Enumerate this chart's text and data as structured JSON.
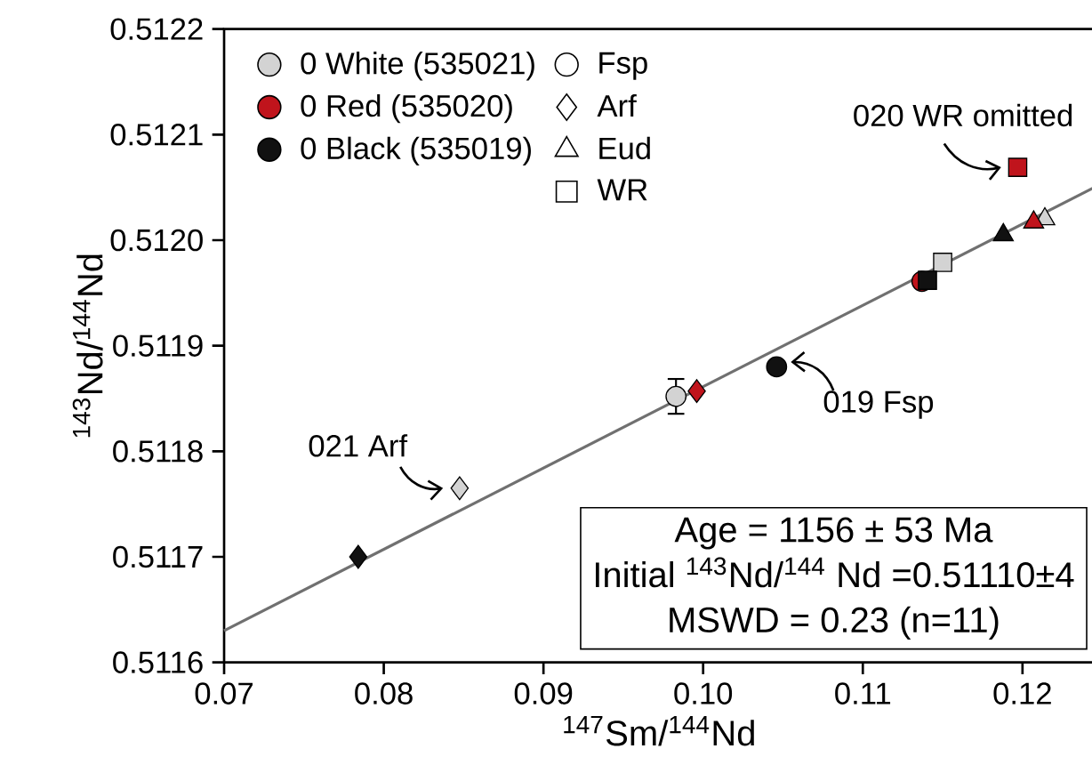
{
  "chart_data": {
    "type": "scatter",
    "xlabel": "$^{147}$Sm/$^{144}$Nd",
    "ylabel": "$^{143}$Nd/$^{144}$Nd",
    "xlim": [
      0.07,
      0.1245
    ],
    "ylim": [
      0.5116,
      0.5122
    ],
    "xticks": [
      0.07,
      0.08,
      0.09,
      {
        "value": 0.1,
        "label": "0.10"
      },
      0.11,
      0.12
    ],
    "yticks": [
      0.5116,
      0.5117,
      0.5118,
      0.5119,
      {
        "value": 0.512,
        "label": "0.5120"
      },
      0.5121,
      0.5122
    ],
    "legend": "top left",
    "series": [
      {
        "type": "line",
        "color": "#707070",
        "x": [
          0.07,
          0.1245
        ],
        "values": [
          0.51163,
          0.51205
        ],
        "line_style": "solid",
        "marker": "none"
      },
      {
        "name": "0 White (535021)",
        "color": "#d3d3d3",
        "x": [
          0.0983,
          0.08475,
          0.115,
          0.1214
        ],
        "values": [
          0.511852,
          0.511765,
          0.511979,
          0.51202
        ],
        "marker": [
          "circle",
          "diamond",
          "square",
          "triangle"
        ],
        "errors": [
          1.65e-05,
          null,
          null,
          null
        ]
      },
      {
        "name": "0 Red (535020)",
        "color": "#c0141c",
        "x": [
          0.1137,
          0.0996,
          0.1207,
          0.1197
        ],
        "values": [
          0.511961,
          0.511857,
          0.512017,
          0.512069
        ],
        "marker": [
          "circle",
          "diamond",
          "triangle",
          "square"
        ]
      },
      {
        "name": "0 Black (535019)",
        "color": "#111111",
        "x": [
          0.1046,
          0.0784,
          0.11405,
          0.1188
        ],
        "values": [
          0.51188,
          0.5117,
          0.511962,
          0.512005
        ],
        "marker": [
          "circle",
          "diamond",
          "square",
          "triangle"
        ]
      },
      {
        "name": "Fsp",
        "color": "#ffffff",
        "marker": "circle"
      },
      {
        "name": "Arf",
        "color": "#ffffff",
        "marker": "diamond"
      },
      {
        "name": "Eud",
        "color": "#ffffff",
        "marker": "triangle"
      },
      {
        "name": "WR",
        "color": "#ffffff",
        "marker": "square"
      }
    ],
    "annotations": [
      {
        "text": "020 WR omitted",
        "x": 0.1197,
        "y": 0.512069
      },
      {
        "text": "019 Fsp",
        "x": 0.1046,
        "y": 0.51188
      },
      {
        "text": "021 Arf",
        "x": 0.08475,
        "y": 0.511765
      },
      "Age = 1156 ± 53 Ma",
      "Initial $^{143}$Nd/$^{144}$ Nd =0.51110±4",
      "MSWD = 0.23 (n=11)"
    ]
  }
}
